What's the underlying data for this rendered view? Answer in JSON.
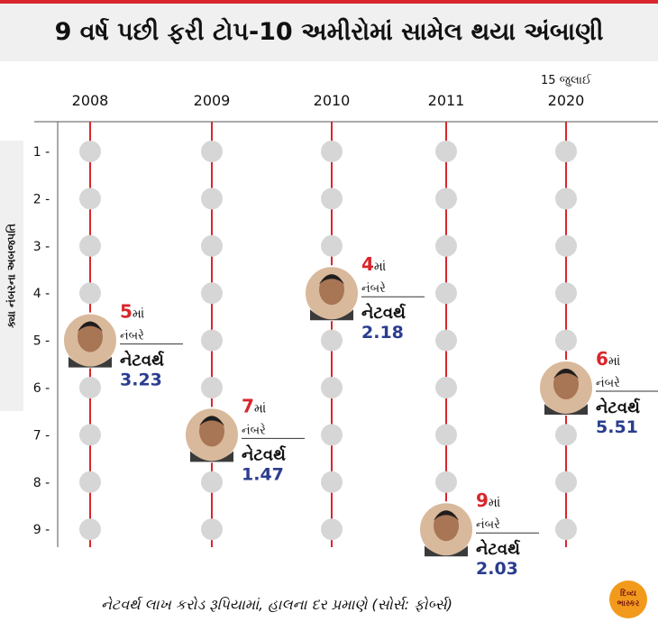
{
  "title": "9 વર્ષ પછી ફરી ટોપ-10 અમીરોમાં સામેલ થયા અંબાણી",
  "footer": "નેટવર્થ લાખ કરોડ રૂપિયામાં, હાલના દર પ્રમાણે (સોર્સ: ફોર્બ્સ)",
  "logo": {
    "line1": "દિવ્ય",
    "line2": "ભાસ્કર"
  },
  "colors": {
    "accent": "#d8262c",
    "value": "#2a3d8f",
    "dot": "#d6d6d6"
  },
  "chart_data": {
    "type": "scatter",
    "ylabel": "ક્યા નંબરના અબજપતિ",
    "y_ticks": [
      "1",
      "2",
      "3",
      "4",
      "5",
      "6",
      "7",
      "8",
      "9"
    ],
    "ylim": [
      1,
      9
    ],
    "columns": [
      {
        "label": "2008",
        "sublabel": "",
        "rank": 5,
        "rank_suffix": "માં",
        "rank_word": "નંબરે",
        "networth_label": "નેટવર્થ",
        "networth": "3.23"
      },
      {
        "label": "2009",
        "sublabel": "",
        "rank": 7,
        "rank_suffix": "માં",
        "rank_word": "નંબરે",
        "networth_label": "નેટવર્થ",
        "networth": "1.47"
      },
      {
        "label": "2010",
        "sublabel": "",
        "rank": 4,
        "rank_suffix": "માં",
        "rank_word": "નંબરે",
        "networth_label": "નેટવર્થ",
        "networth": "2.18"
      },
      {
        "label": "2011",
        "sublabel": "",
        "rank": 9,
        "rank_suffix": "માં",
        "rank_word": "નંબરે",
        "networth_label": "નેટવર્થ",
        "networth": "2.03"
      },
      {
        "label": "2020",
        "sublabel": "15 જુલાઈ",
        "rank": 6,
        "rank_suffix": "માં",
        "rank_word": "નંબરે",
        "networth_label": "નેટવર્થ",
        "networth": "5.51"
      }
    ]
  }
}
